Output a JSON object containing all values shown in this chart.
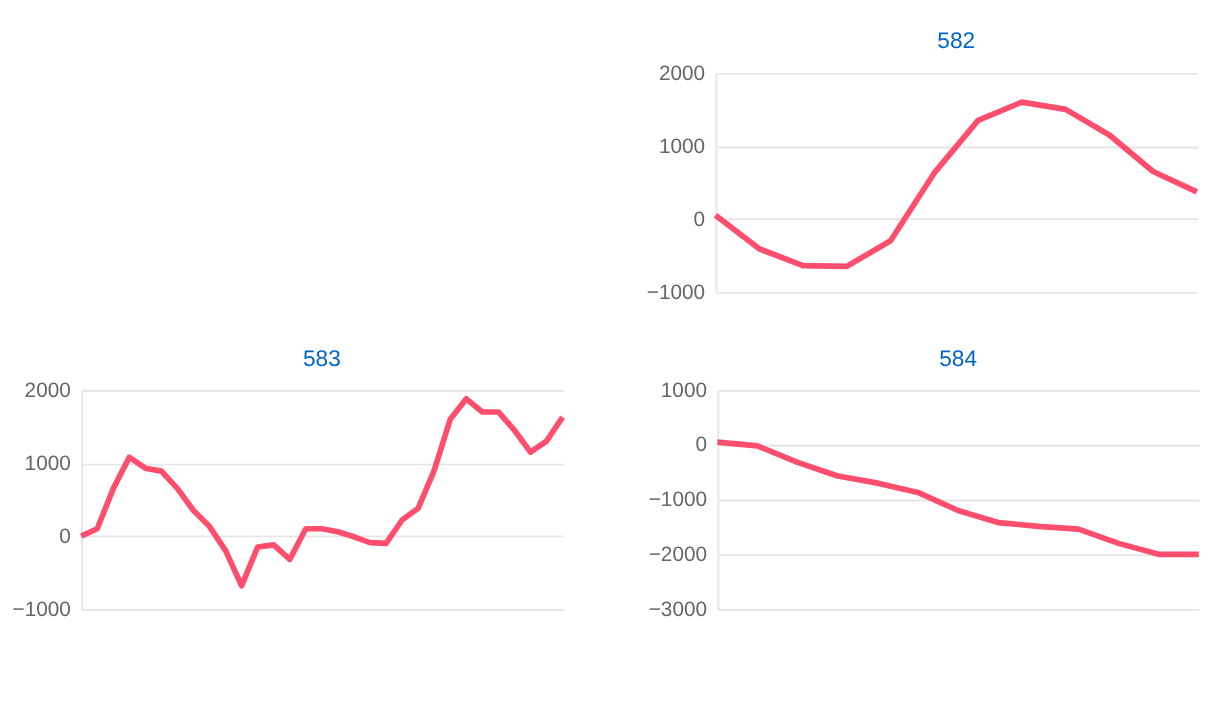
{
  "chart_data": [
    {
      "type": "line",
      "title": "582",
      "categories": [
        null,
        null,
        null,
        null,
        null,
        null,
        null,
        null,
        null,
        null,
        null,
        null
      ],
      "series": [
        {
          "color": "#ff4d6d",
          "values": [
            50,
            -410,
            -640,
            -650,
            -300,
            630,
            1350,
            1600,
            1500,
            1150,
            650,
            370
          ]
        }
      ],
      "ylim": [
        -1000,
        2000
      ],
      "yticks": [
        -1000,
        0,
        1000,
        2000
      ],
      "grid": "y",
      "tick_labels": "y",
      "marker": "none",
      "line_style": "solid",
      "legend": false
    },
    {
      "type": "line",
      "title": "583",
      "categories": [
        null,
        null,
        null,
        null,
        null,
        null,
        null,
        null,
        null,
        null,
        null,
        null,
        null,
        null,
        null,
        null,
        null,
        null,
        null,
        null,
        null,
        null,
        null,
        null,
        null,
        null,
        null,
        null,
        null,
        null,
        null
      ],
      "series": [
        {
          "color": "#ff4d6d",
          "values": [
            0,
            100,
            650,
            1080,
            930,
            890,
            650,
            350,
            130,
            -200,
            -680,
            -150,
            -120,
            -320,
            100,
            100,
            60,
            -10,
            -90,
            -100,
            220,
            380,
            900,
            1600,
            1880,
            1700,
            1700,
            1450,
            1150,
            1300,
            1630
          ]
        }
      ],
      "ylim": [
        -1000,
        2000
      ],
      "yticks": [
        -1000,
        0,
        1000,
        2000
      ],
      "grid": "y",
      "tick_labels": "y",
      "marker": "none",
      "line_style": "solid",
      "legend": false
    },
    {
      "type": "line",
      "title": "584",
      "categories": [
        null,
        null,
        null,
        null,
        null,
        null,
        null,
        null,
        null,
        null,
        null,
        null,
        null
      ],
      "series": [
        {
          "color": "#ff4d6d",
          "values": [
            50,
            -20,
            -320,
            -570,
            -700,
            -870,
            -1200,
            -1420,
            -1490,
            -1540,
            -1800,
            -2000,
            -2000
          ]
        }
      ],
      "ylim": [
        -3000,
        1000
      ],
      "yticks": [
        -3000,
        -2000,
        -1000,
        0,
        1000
      ],
      "grid": "y",
      "tick_labels": "y",
      "marker": "none",
      "line_style": "solid",
      "legend": false
    }
  ]
}
